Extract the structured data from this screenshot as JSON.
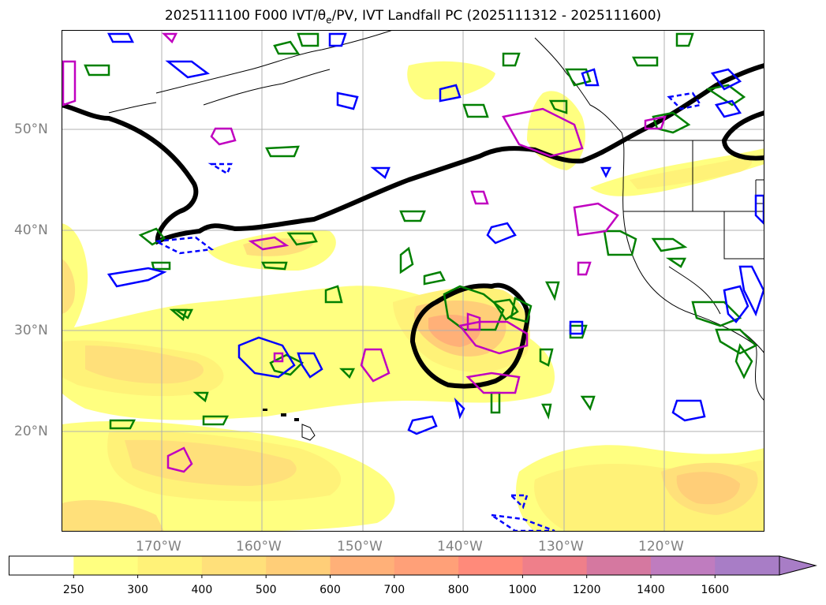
{
  "title": {
    "prefix": "2025111100 F000 IVT/θ",
    "sub": "e",
    "suffix": "/PV, IVT Landfall PC (2025111312 - 2025111600)"
  },
  "lat_labels": [
    "50°N",
    "40°N",
    "30°N",
    "20°N"
  ],
  "lon_labels": [
    "170°W",
    "160°W",
    "150°W",
    "140°W",
    "130°W",
    "120°W"
  ],
  "colorbar": {
    "ticks": [
      "250",
      "300",
      "400",
      "500",
      "600",
      "700",
      "800",
      "1000",
      "1200",
      "1400",
      "1600"
    ],
    "colors": [
      "#ffffff",
      "#ffff80",
      "#fff278",
      "#ffe07a",
      "#ffce78",
      "#ffb078",
      "#ffa078",
      "#ff8a7a",
      "#ef7f8a",
      "#d578a0",
      "#bf7cbf",
      "#a87dc6"
    ]
  }
}
